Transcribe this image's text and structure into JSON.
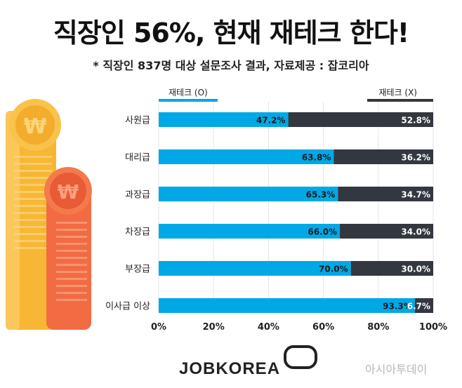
{
  "title": "직장인 56%, 현재 재테크 한다!",
  "subtitle": "* 직장인 837명 대상 설문조사 결과, 자료제공 : 잡코리아",
  "logo_text": "JOBKOREA",
  "watermark": "아시아투데이",
  "icons": [
    "won-coin-icon",
    "won-coin-icon"
  ],
  "colors": {
    "yes": "#00a8e6",
    "no": "#333740",
    "coin_yellow": "#f7b734",
    "coin_orange": "#f26b43"
  },
  "chart_data": {
    "type": "bar",
    "orientation": "horizontal",
    "stacked": true,
    "title": "직장인 56%, 현재 재테크 한다!",
    "categories": [
      "사원급",
      "대리급",
      "과장급",
      "차장급",
      "부장급",
      "이사급 이상"
    ],
    "series": [
      {
        "name": "재테크 (O)",
        "values": [
          47.2,
          63.8,
          65.3,
          66.0,
          70.0,
          93.3
        ],
        "labels": [
          "47.2%",
          "63.8%",
          "65.3%",
          "66.0%",
          "70.0%",
          "93.3%"
        ],
        "color": "#00a8e6"
      },
      {
        "name": "재테크 (X)",
        "values": [
          52.8,
          36.2,
          34.7,
          34.0,
          30.0,
          6.7
        ],
        "labels": [
          "52.8%",
          "36.2%",
          "34.7%",
          "34.0%",
          "30.0%",
          "6.7%"
        ],
        "color": "#333740"
      }
    ],
    "xlim": [
      0,
      100
    ],
    "xticks": [
      0,
      20,
      40,
      60,
      80,
      100
    ],
    "xtick_labels": [
      "0%",
      "20%",
      "40%",
      "60%",
      "80%",
      "100%"
    ],
    "grid": true,
    "legend_position": "top"
  }
}
